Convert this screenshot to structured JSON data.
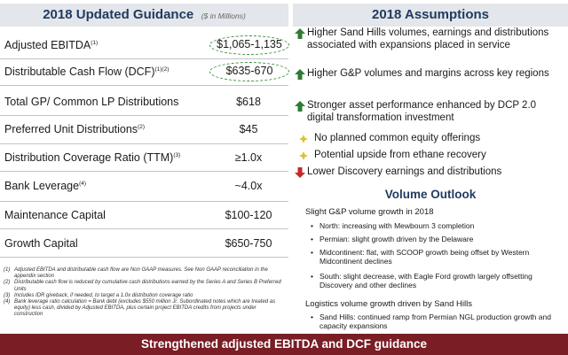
{
  "guidance": {
    "title": "2018 Updated Guidance",
    "unit_note": "($ in Millions)",
    "rows": [
      {
        "label": "Adjusted EBITDA",
        "sup": "(1)",
        "value": "$1,065-1,135"
      },
      {
        "label": "Distributable Cash Flow (DCF)",
        "sup": "(1)(2)",
        "value": "$635-670"
      },
      {
        "label": "Total GP/ Common LP Distributions",
        "sup": "",
        "value": "$618"
      },
      {
        "label": "Preferred Unit Distributions",
        "sup": "(2)",
        "value": "$45"
      },
      {
        "label": "Distribution Coverage Ratio (TTM)",
        "sup": "(3)",
        "value": "≥1.0x"
      },
      {
        "label": "Bank Leverage",
        "sup": "(4)",
        "value": "~4.0x"
      },
      {
        "label": "Maintenance Capital",
        "sup": "",
        "value": "$100-120"
      },
      {
        "label": "Growth Capital",
        "sup": "",
        "value": "$650-750"
      }
    ],
    "footnotes": [
      {
        "num": "(1)",
        "text": "Adjusted EBITDA and distributable cash flow are Non GAAP measures. See Non GAAP reconciliation in the appendix section"
      },
      {
        "num": "(2)",
        "text": "Distributable cash flow is reduced by cumulative cash distributions earned by the Series A and Series B Preferred Units"
      },
      {
        "num": "(3)",
        "text": "Includes IDR giveback, if needed, to target a 1.0x distribution coverage ratio"
      },
      {
        "num": "(4)",
        "text": "Bank leverage ratio calculation = Bank debt (excludes $550 million Jr. Subordinated notes which are treated as equity) less cash, divided by Adjusted EBITDA, plus certain project EBITDA credits from projects under construction"
      }
    ]
  },
  "assumptions": {
    "title": "2018 Assumptions",
    "items": [
      {
        "icon": "green-up-arrow-icon",
        "text": "Higher Sand Hills volumes, earnings and distributions associated with expansions placed in service"
      },
      {
        "icon": "green-up-arrow-icon",
        "text": "Higher G&P volumes and margins across key regions"
      },
      {
        "icon": "green-up-arrow-icon",
        "text": "Stronger asset performance enhanced by DCP 2.0 digital transformation investment"
      },
      {
        "icon": "yellow-diamond-icon",
        "text": "No planned common equity offerings"
      },
      {
        "icon": "yellow-diamond-icon",
        "text": "Potential upside from ethane recovery"
      },
      {
        "icon": "red-down-arrow-icon",
        "text": "Lower Discovery earnings and distributions"
      }
    ]
  },
  "volume": {
    "title": "Volume Outlook",
    "groups": [
      {
        "heading": "Slight G&P volume growth in 2018",
        "bullets": [
          "North: increasing with Mewbourn 3 completion",
          "Permian: slight growth driven by the Delaware",
          "Midcontinent: flat, with SCOOP growth being offset by Western Midcontinent declines",
          "South: slight decrease, with Eagle Ford growth largely offsetting Discovery and other declines"
        ]
      },
      {
        "heading": "Logistics volume growth driven by Sand Hills",
        "bullets": [
          "Sand Hills: continued ramp from Permian NGL production growth and capacity expansions"
        ]
      }
    ]
  },
  "footer": {
    "text": "Strengthened adjusted EBITDA and DCF guidance"
  },
  "colors": {
    "title_navy": "#1f3a5f",
    "header_bg": "#e3e6ea",
    "footer_bg": "#7a1d24",
    "up_arrow": "#2e7d32",
    "diamond": "#e0c02a",
    "down_arrow": "#c62828",
    "dashed_circle": "#3a8a3a"
  }
}
